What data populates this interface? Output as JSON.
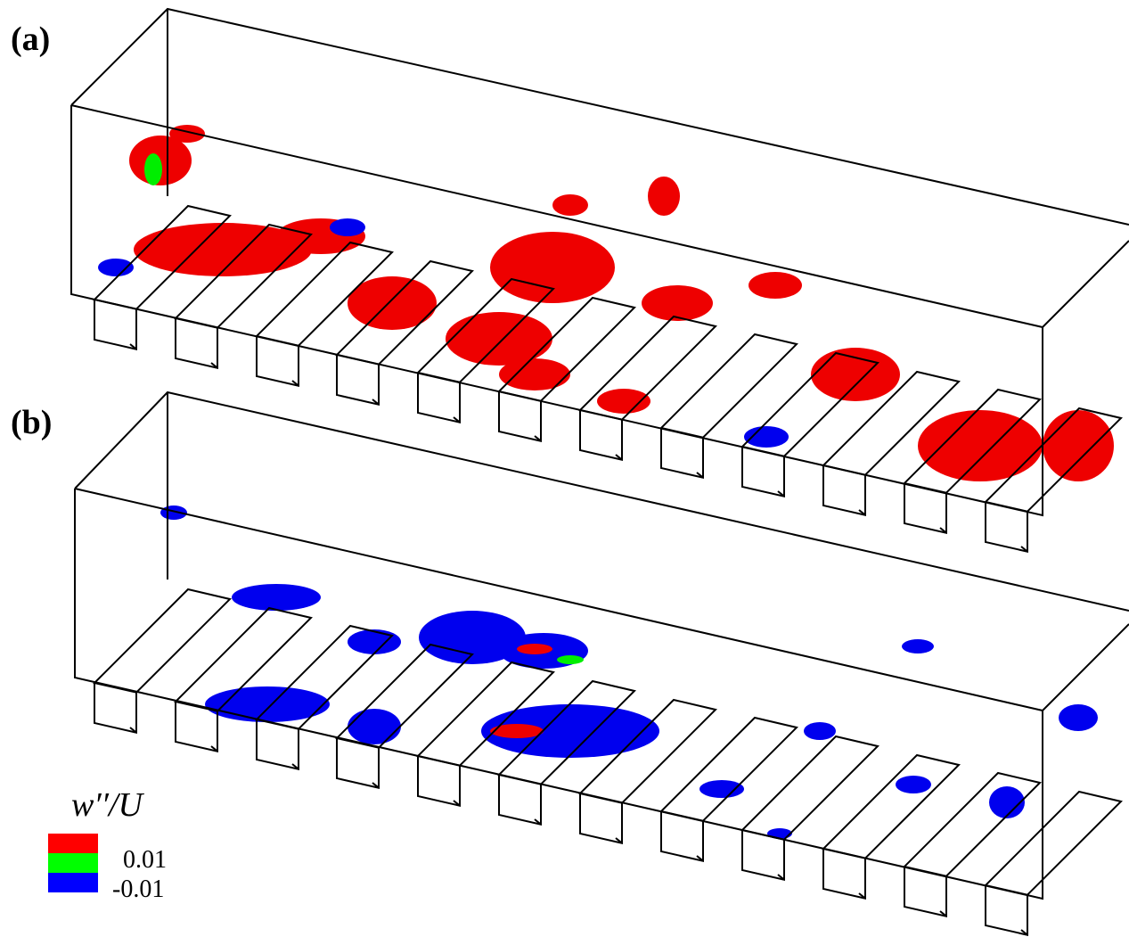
{
  "panels": [
    {
      "label": "(a)"
    },
    {
      "label": "(b)"
    }
  ],
  "legend": {
    "title": "w′′/U",
    "colors": [
      "#ff0000",
      "#00ff00",
      "#0000ff"
    ],
    "labels": [
      "0.01",
      "-0.01"
    ]
  }
}
